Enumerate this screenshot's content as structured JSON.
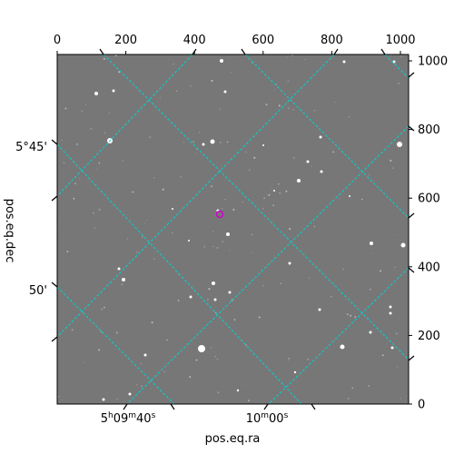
{
  "figure": {
    "xlabel": "pos.eq.ra",
    "ylabel": "pos.eq.dec",
    "pixel_axis_top_ticks": [
      "0",
      "200",
      "400",
      "600",
      "800",
      "1000"
    ],
    "pixel_axis_right_ticks": [
      "0",
      "200",
      "400",
      "600",
      "800",
      "1000"
    ],
    "ra_tick_labels": [
      {
        "hours": "5",
        "minutes": "09",
        "seconds": "40"
      },
      {
        "hours": "",
        "minutes": "10",
        "seconds": "00"
      }
    ],
    "dec_tick_labels": [
      "5°45'",
      "50'"
    ],
    "colors": {
      "grid": "#00d4d4",
      "marker": "#d000d0",
      "sky_background": "#777777",
      "star": "#ffffff"
    }
  }
}
